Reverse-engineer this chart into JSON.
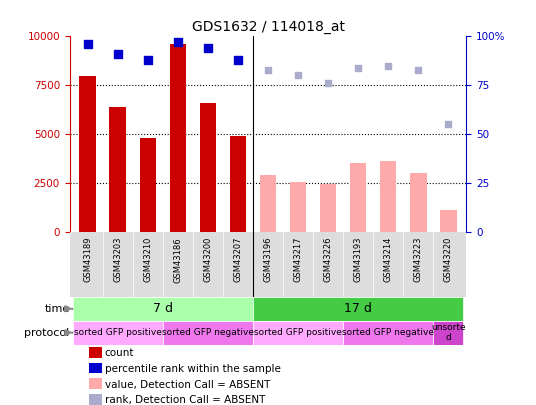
{
  "title": "GDS1632 / 114018_at",
  "samples": [
    "GSM43189",
    "GSM43203",
    "GSM43210",
    "GSM43186",
    "GSM43200",
    "GSM43207",
    "GSM43196",
    "GSM43217",
    "GSM43226",
    "GSM43193",
    "GSM43214",
    "GSM43223",
    "GSM43220"
  ],
  "count_values": [
    8000,
    6400,
    4800,
    9600,
    6600,
    4900,
    null,
    null,
    null,
    null,
    null,
    null,
    null
  ],
  "count_absent": [
    null,
    null,
    null,
    null,
    null,
    null,
    2900,
    2550,
    2450,
    3500,
    3600,
    3000,
    1100
  ],
  "rank_pct_values": [
    96,
    91,
    88,
    97,
    94,
    88,
    null,
    null,
    null,
    null,
    null,
    null,
    null
  ],
  "rank_pct_absent": [
    null,
    null,
    null,
    null,
    null,
    null,
    83,
    80.5,
    76,
    84,
    85,
    83,
    55
  ],
  "ylim_left": [
    0,
    10000
  ],
  "ylim_right": [
    0,
    100
  ],
  "yticks_left": [
    0,
    2500,
    5000,
    7500,
    10000
  ],
  "yticks_right": [
    0,
    25,
    50,
    75,
    100
  ],
  "color_count": "#cc0000",
  "color_rank": "#0000cc",
  "color_count_absent": "#ffaaaa",
  "color_rank_absent": "#aaaacc",
  "time_7d_samples": 6,
  "time_17d_samples": 7,
  "time_label_7d": "7 d",
  "time_label_17d": "17 d",
  "time_color_7d": "#aaffaa",
  "time_color_17d": "#44cc44",
  "protocol_groups": [
    {
      "label": "sorted GFP positive",
      "start": 0,
      "end": 3,
      "color": "#ffaaff"
    },
    {
      "label": "sorted GFP negative",
      "start": 3,
      "end": 6,
      "color": "#ee77ee"
    },
    {
      "label": "sorted GFP positive",
      "start": 6,
      "end": 9,
      "color": "#ffaaff"
    },
    {
      "label": "sorted GFP negative",
      "start": 9,
      "end": 12,
      "color": "#ee77ee"
    },
    {
      "label": "unsorte\nd",
      "start": 12,
      "end": 13,
      "color": "#cc44cc"
    }
  ],
  "legend_items": [
    {
      "label": "count",
      "color": "#cc0000"
    },
    {
      "label": "percentile rank within the sample",
      "color": "#0000cc"
    },
    {
      "label": "value, Detection Call = ABSENT",
      "color": "#ffaaaa"
    },
    {
      "label": "rank, Detection Call = ABSENT",
      "color": "#aaaacc"
    }
  ],
  "bg_color": "#ffffff",
  "xtick_bg": "#dddddd",
  "plot_bg": "#ffffff"
}
